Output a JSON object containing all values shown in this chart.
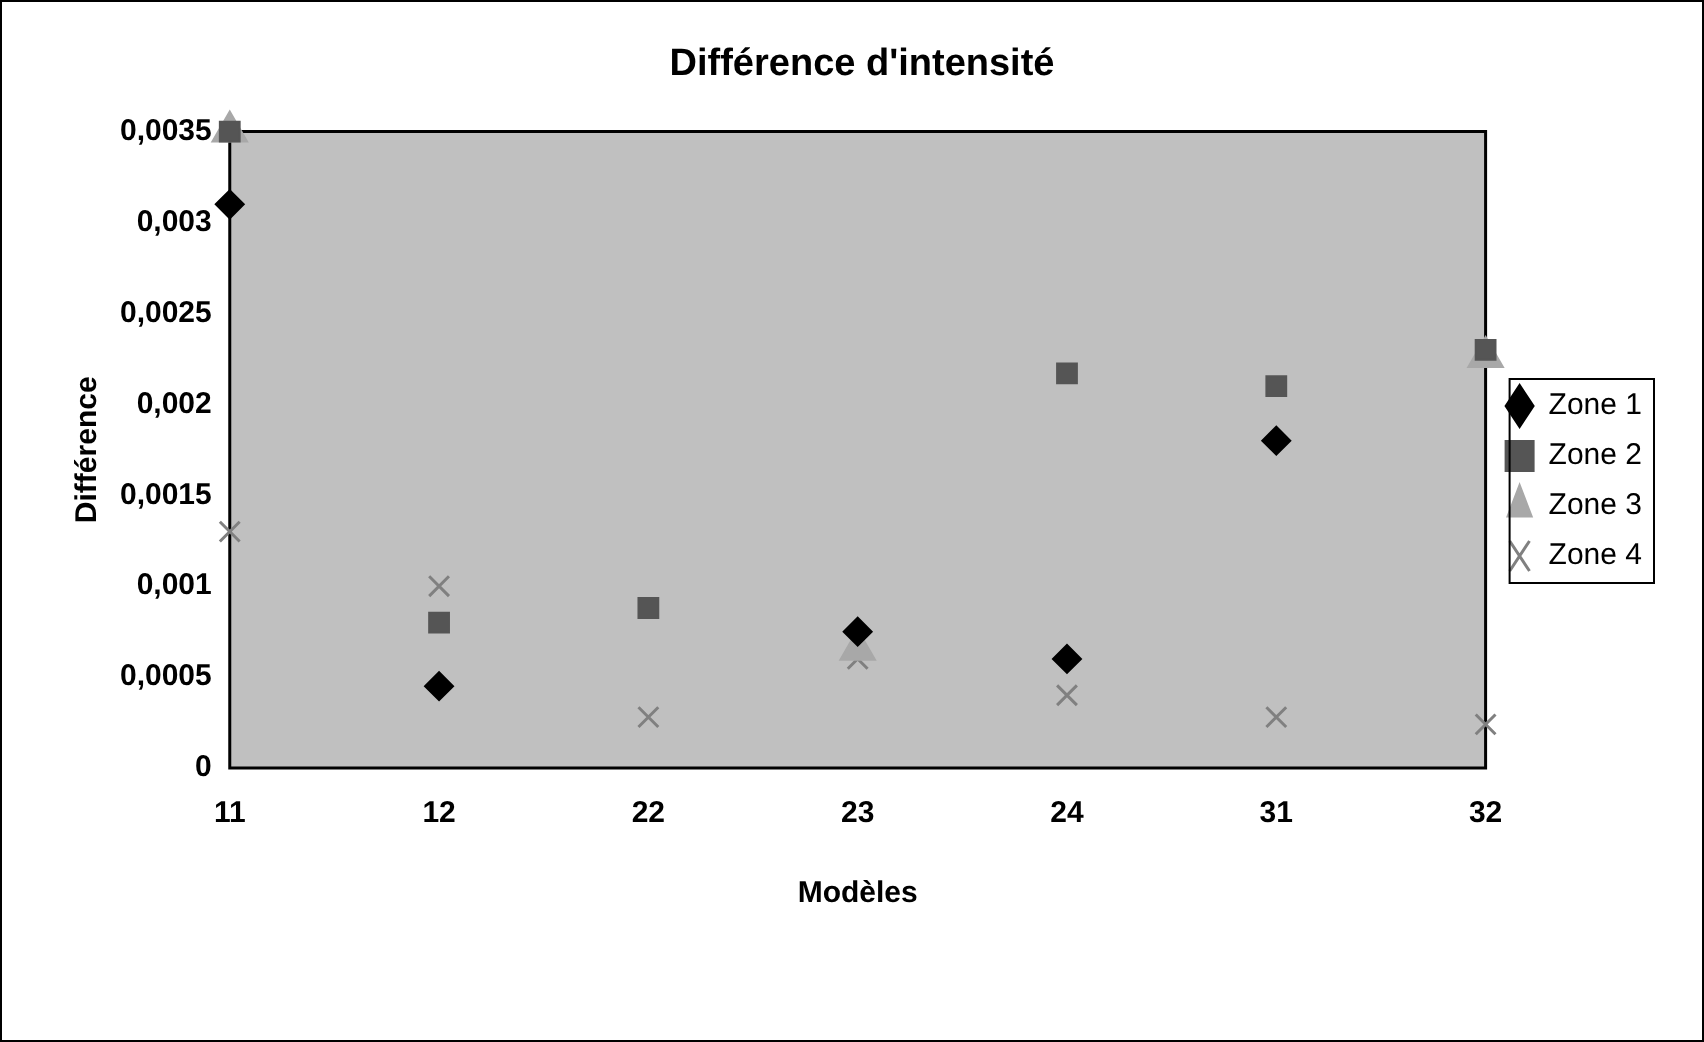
{
  "chart_data": {
    "type": "scatter",
    "title": "Différence d'intensité",
    "xlabel": "Modèles",
    "ylabel": "Différence",
    "categories": [
      "11",
      "12",
      "22",
      "23",
      "24",
      "31",
      "32"
    ],
    "series": [
      {
        "name": "Zone 1",
        "color": "#000000",
        "marker": "diamond",
        "values": [
          0.0031,
          0.00045,
          null,
          0.00075,
          0.0006,
          0.0018,
          null
        ]
      },
      {
        "name": "Zone 2",
        "color": "#555555",
        "marker": "square",
        "values": [
          0.0035,
          0.0008,
          0.00088,
          null,
          0.00217,
          0.0021,
          0.0023
        ]
      },
      {
        "name": "Zone 3",
        "color": "#a8a8a8",
        "marker": "triangle",
        "values": [
          0.0035,
          null,
          null,
          0.00065,
          null,
          null,
          0.00226
        ]
      },
      {
        "name": "Zone 4",
        "color": "#808080",
        "marker": "cross",
        "values": [
          0.0013,
          0.001,
          0.00028,
          0.0006,
          0.0004,
          0.00028,
          0.00024
        ]
      }
    ],
    "ylim": [
      0,
      0.0035
    ],
    "yticks": [
      {
        "value": 0,
        "label": "0"
      },
      {
        "value": 0.0005,
        "label": "0,0005"
      },
      {
        "value": 0.001,
        "label": "0,001"
      },
      {
        "value": 0.0015,
        "label": "0,0015"
      },
      {
        "value": 0.002,
        "label": "0,002"
      },
      {
        "value": 0.0025,
        "label": "0,0025"
      },
      {
        "value": 0.003,
        "label": "0,003"
      },
      {
        "value": 0.0035,
        "label": "0,0035"
      }
    ],
    "grid": false,
    "legend": "right"
  }
}
